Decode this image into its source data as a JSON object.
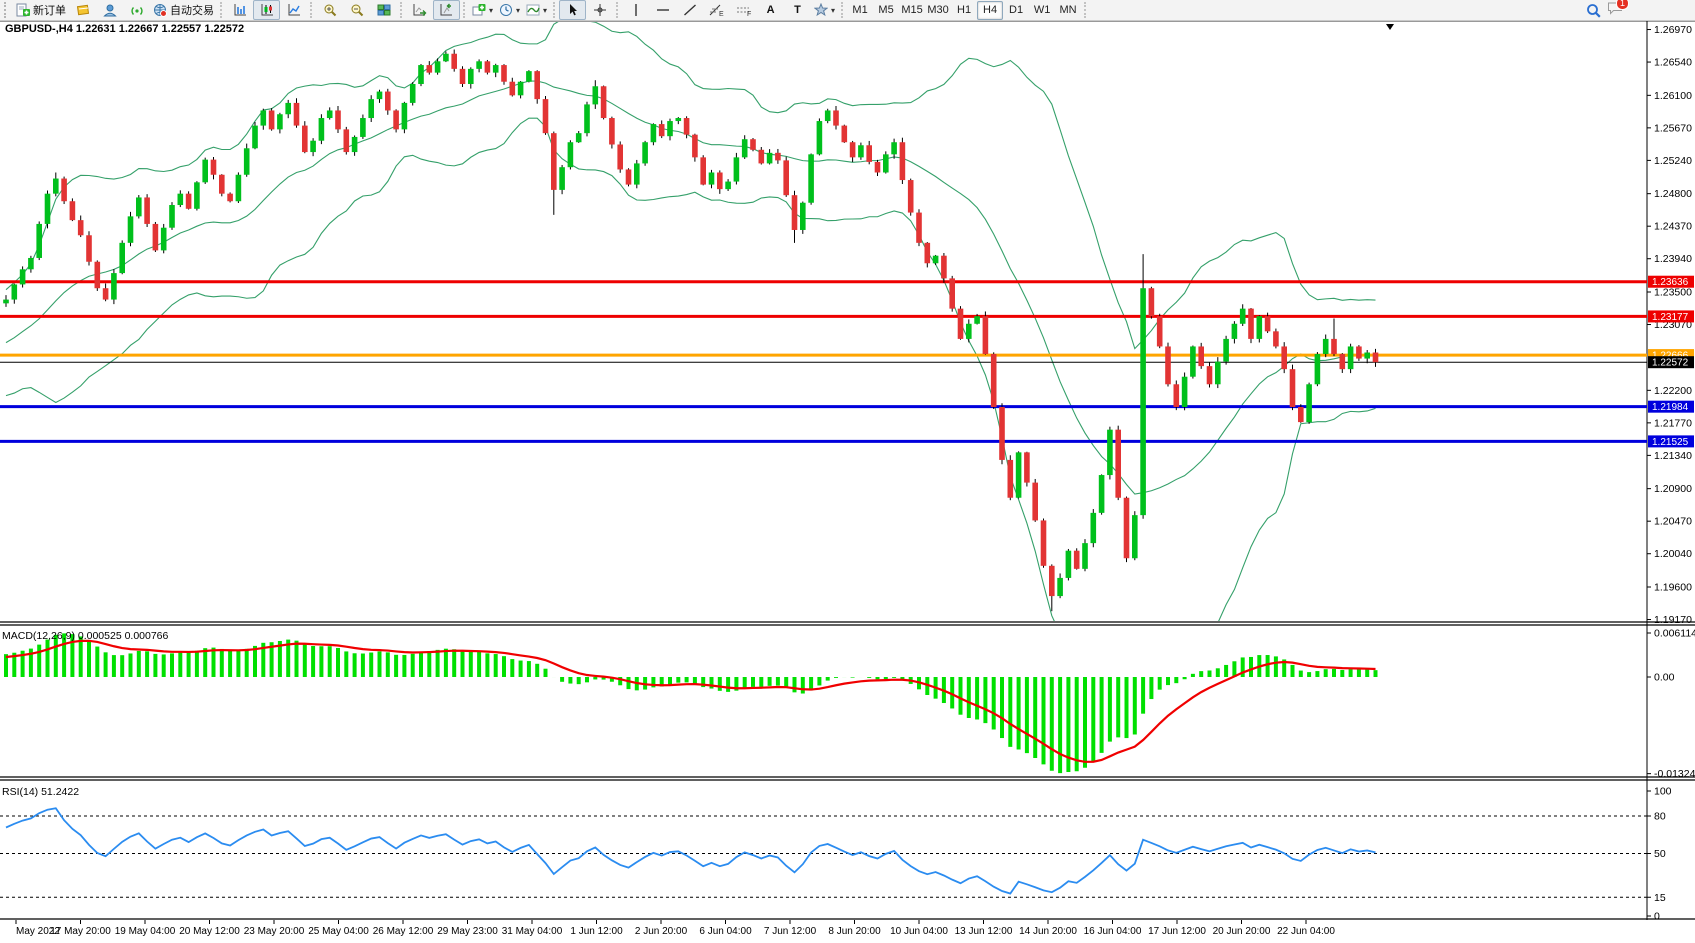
{
  "toolbar": {
    "new_order_label": "新订单",
    "algo_trading_label": "自动交易",
    "text_tool_glyph": "A",
    "label_tool_glyph": "T",
    "timeframes": [
      "M1",
      "M5",
      "M15",
      "M30",
      "H1",
      "H4",
      "D1",
      "W1",
      "MN"
    ],
    "active_timeframe": "H4",
    "chat_badge_count": "1",
    "items": [
      {
        "t": "grip"
      },
      {
        "t": "btn",
        "n": "new-order-button",
        "icon": "new-order",
        "label_key": "new_order_label"
      },
      {
        "t": "btn",
        "n": "market-button",
        "icon": "market"
      },
      {
        "t": "btn",
        "n": "community-button",
        "icon": "community"
      },
      {
        "t": "btn",
        "n": "signals-button",
        "icon": "signals"
      },
      {
        "t": "btn",
        "n": "algo-trading-button",
        "icon": "algo",
        "label_key": "algo_trading_label"
      },
      {
        "t": "sep"
      },
      {
        "t": "btn",
        "n": "bar-chart-button",
        "icon": "bars"
      },
      {
        "t": "btn",
        "n": "candlestick-chart-button",
        "icon": "candles",
        "active": true
      },
      {
        "t": "btn",
        "n": "line-chart-button",
        "icon": "linechart"
      },
      {
        "t": "sep"
      },
      {
        "t": "btn",
        "n": "zoom-in-button",
        "icon": "zoomin"
      },
      {
        "t": "btn",
        "n": "zoom-out-button",
        "icon": "zoomout"
      },
      {
        "t": "btn",
        "n": "tile-windows-button",
        "icon": "tile"
      },
      {
        "t": "sep"
      },
      {
        "t": "btn",
        "n": "auto-scroll-button",
        "icon": "autoscroll"
      },
      {
        "t": "btn",
        "n": "chart-shift-button",
        "icon": "shift",
        "active": true
      },
      {
        "t": "sep"
      },
      {
        "t": "btn",
        "n": "new-chart-dropdown",
        "icon": "newchart",
        "dd": true
      },
      {
        "t": "btn",
        "n": "timeframe-dropdown",
        "icon": "clock",
        "dd": true
      },
      {
        "t": "btn",
        "n": "indicators-dropdown",
        "icon": "indicator",
        "dd": true
      },
      {
        "t": "sep"
      },
      {
        "t": "btn",
        "n": "cursor-button",
        "icon": "cursor",
        "active": true
      },
      {
        "t": "btn",
        "n": "crosshair-button",
        "icon": "crosshair"
      },
      {
        "t": "sep"
      },
      {
        "t": "btn",
        "n": "vertical-line-button",
        "icon": "vline"
      },
      {
        "t": "btn",
        "n": "horizontal-line-button",
        "icon": "hline"
      },
      {
        "t": "btn",
        "n": "trendline-button",
        "icon": "trend"
      },
      {
        "t": "btn",
        "n": "fibonacci-button",
        "icon": "fibo"
      },
      {
        "t": "btn",
        "n": "channel-button",
        "icon": "channel"
      },
      {
        "t": "btn",
        "n": "text-button",
        "glyph_key": "text_tool_glyph"
      },
      {
        "t": "btn",
        "n": "label-button",
        "glyph_key": "label_tool_glyph"
      },
      {
        "t": "btn",
        "n": "objects-dropdown",
        "icon": "objects",
        "dd": true
      },
      {
        "t": "sep"
      },
      {
        "t": "timeframes"
      },
      {
        "t": "sep"
      },
      {
        "t": "flex"
      },
      {
        "t": "btn",
        "n": "search-button",
        "icon": "search"
      },
      {
        "t": "chat",
        "n": "chat-button"
      }
    ]
  },
  "chart": {
    "title_line": "GBPUSD-,H4  1.22631 1.22667 1.22557 1.22572",
    "macd_label": "MACD(12,26,9) 0.000525 0.000766",
    "rsi_label": "RSI(14) 51.2422"
  },
  "chart_data": {
    "type": "candlestick",
    "symbol": "GBPUSD-",
    "timeframe": "H4",
    "current_bar": {
      "open": "1.22631",
      "high": "1.22667",
      "low": "1.22557",
      "close": "1.22572"
    },
    "price_axis_ticks": [
      "1.26970",
      "1.26540",
      "1.26100",
      "1.25670",
      "1.25240",
      "1.24800",
      "1.24370",
      "1.23940",
      "1.23500",
      "1.23070",
      "1.22200",
      "1.21770",
      "1.21340",
      "1.20900",
      "1.20470",
      "1.20040",
      "1.19600",
      "1.19170"
    ],
    "price_axis_tick_values": [
      1.2697,
      1.2654,
      1.261,
      1.2567,
      1.2524,
      1.248,
      1.2437,
      1.2394,
      1.235,
      1.2307,
      1.222,
      1.2177,
      1.2134,
      1.209,
      1.2047,
      1.2004,
      1.196,
      1.1917
    ],
    "hlines": [
      {
        "label": "1.23636",
        "price": 1.23636,
        "color": "#ee0000",
        "width": 3
      },
      {
        "label": "1.23177",
        "price": 1.23177,
        "color": "#ee0000",
        "width": 3
      },
      {
        "label": "1.22666",
        "price": 1.22666,
        "color": "#ffa500",
        "width": 3
      },
      {
        "label": "1.22572",
        "price": 1.22572,
        "color": "#000000",
        "width": 1
      },
      {
        "label": "1.21984",
        "price": 1.21984,
        "color": "#0000dd",
        "width": 3
      },
      {
        "label": "1.21525",
        "price": 1.21525,
        "color": "#0000dd",
        "width": 3
      }
    ],
    "time_labels": [
      "May 2022",
      "17 May 20:00",
      "19 May 04:00",
      "20 May 12:00",
      "23 May 20:00",
      "25 May 04:00",
      "26 May 12:00",
      "29 May 23:00",
      "31 May 04:00",
      "1 Jun 12:00",
      "2 Jun 20:00",
      "6 Jun 04:00",
      "7 Jun 12:00",
      "8 Jun 20:00",
      "10 Jun 04:00",
      "13 Jun 12:00",
      "14 Jun 20:00",
      "16 Jun 04:00",
      "17 Jun 12:00",
      "20 Jun 20:00",
      "22 Jun 04:00"
    ],
    "prehistory_closes": [
      1.2195,
      1.218,
      1.217,
      1.2185,
      1.2205,
      1.219,
      1.221,
      1.223,
      1.2218,
      1.224,
      1.2255,
      1.2245,
      1.2262,
      1.225,
      1.227,
      1.2285,
      1.2275,
      1.2295,
      1.2288,
      1.2305,
      1.2315,
      1.23,
      1.2318,
      1.231,
      1.2325,
      1.2335
    ],
    "closes": [
      1.234,
      1.236,
      1.238,
      1.2395,
      1.244,
      1.248,
      1.25,
      1.247,
      1.2445,
      1.2425,
      1.239,
      1.2355,
      1.234,
      1.2375,
      1.2415,
      1.245,
      1.2475,
      1.244,
      1.2405,
      1.2435,
      1.2465,
      1.248,
      1.246,
      1.2495,
      1.2525,
      1.2505,
      1.248,
      1.247,
      1.2505,
      1.254,
      1.257,
      1.259,
      1.2565,
      1.2585,
      1.26,
      1.257,
      1.2535,
      1.255,
      1.258,
      1.259,
      1.2565,
      1.2535,
      1.2555,
      1.258,
      1.2605,
      1.2615,
      1.259,
      1.2565,
      1.26,
      1.2625,
      1.265,
      1.264,
      1.2655,
      1.2665,
      1.2645,
      1.2625,
      1.2645,
      1.2655,
      1.264,
      1.265,
      1.2628,
      1.261,
      1.2628,
      1.2642,
      1.2605,
      1.256,
      1.2485,
      1.2515,
      1.2548,
      1.256,
      1.2598,
      1.2622,
      1.258,
      1.2545,
      1.2512,
      1.2492,
      1.252,
      1.2548,
      1.2572,
      1.2556,
      1.2576,
      1.258,
      1.2558,
      1.2528,
      1.2492,
      1.2508,
      1.2486,
      1.2496,
      1.2528,
      1.2552,
      1.2538,
      1.252,
      1.2534,
      1.2524,
      1.2478,
      1.2432,
      1.2468,
      1.2532,
      1.2576,
      1.259,
      1.257,
      1.2548,
      1.2528,
      1.2544,
      1.2522,
      1.2508,
      1.2532,
      1.2548,
      1.2498,
      1.2455,
      1.2415,
      1.2388,
      1.2398,
      1.2368,
      1.2328,
      1.2288,
      1.2308,
      1.2318,
      1.2268,
      1.2198,
      1.2128,
      1.2078,
      1.2138,
      1.2098,
      1.2048,
      1.1988,
      1.1948,
      1.1972,
      1.2008,
      1.1984,
      1.2018,
      1.2058,
      1.2108,
      1.2168,
      1.2078,
      1.1998,
      1.2055,
      1.2355,
      1.2318,
      1.2278,
      1.2228,
      1.2198,
      1.2238,
      1.2278,
      1.2252,
      1.2228,
      1.2258,
      1.2288,
      1.2308,
      1.2328,
      1.2288,
      1.2318,
      1.2298,
      1.2278,
      1.2248,
      1.2198,
      1.2178,
      1.2228,
      1.2268,
      1.2288,
      1.2268,
      1.2248,
      1.2278,
      1.2262,
      1.227,
      1.22572
    ],
    "high_overrides": {
      "6": 1.2508,
      "53": 1.2668,
      "71": 1.263,
      "137": 1.24,
      "160": 1.2315
    },
    "low_overrides": {
      "66": 1.2452,
      "95": 1.2415,
      "126": 1.1928
    },
    "colors": {
      "up": "#00c01c",
      "down": "#e23434",
      "wick": "#000000",
      "bollinger": "#35a06a",
      "macd_hist": "#00e000",
      "macd_signal": "#f00000",
      "rsi_line": "#2b8cf0"
    },
    "indicators": {
      "bollinger": {
        "period": 20,
        "deviation": 2
      },
      "macd": {
        "fast": 12,
        "slow": 26,
        "signal": 9,
        "main_value": "0.000525",
        "signal_value": "0.000766",
        "axis_labels": [
          "0.006114",
          "0.00",
          "-0.013241"
        ],
        "axis_values": [
          0.006114,
          0.0,
          -0.013241
        ]
      },
      "rsi": {
        "period": 14,
        "value": "51.2422",
        "levels": [
          80,
          50,
          15
        ],
        "axis_labels": [
          "100",
          "80",
          "50",
          "15",
          "0"
        ],
        "axis_values": [
          100,
          80,
          50,
          15,
          0
        ]
      }
    }
  }
}
